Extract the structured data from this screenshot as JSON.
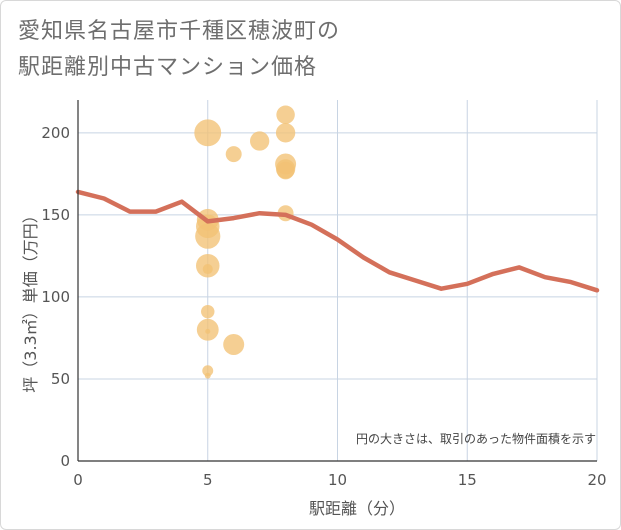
{
  "title_line1": "愛知県名古屋市千種区穂波町の",
  "title_line2": "駅距離別中古マンション価格",
  "colors": {
    "bubble": "#f2c174",
    "line": "#d4705a",
    "grid": "#c8d4e3",
    "axis": "#333333"
  },
  "chart_data": {
    "type": "scatter",
    "xlabel": "駅距離（分）",
    "ylabel": "坪（3.3㎡）単価（万円）",
    "xlim": [
      0,
      20
    ],
    "ylim": [
      0,
      220
    ],
    "x_ticks": [
      "0",
      "5",
      "10",
      "15",
      "20"
    ],
    "y_ticks": [
      "0",
      "50",
      "100",
      "150",
      "200"
    ],
    "note": "円の大きさは、取引のあった物件面積を示す",
    "bubbles": [
      {
        "x": 5,
        "y": 200,
        "size": 3.2
      },
      {
        "x": 5,
        "y": 147,
        "size": 2.6
      },
      {
        "x": 5,
        "y": 143,
        "size": 2.8
      },
      {
        "x": 5,
        "y": 137,
        "size": 3.0
      },
      {
        "x": 5,
        "y": 119,
        "size": 2.8
      },
      {
        "x": 5,
        "y": 117,
        "size": 1.2
      },
      {
        "x": 5,
        "y": 91,
        "size": 1.6
      },
      {
        "x": 5,
        "y": 80,
        "size": 2.6
      },
      {
        "x": 5,
        "y": 79,
        "size": 0.6
      },
      {
        "x": 5,
        "y": 55,
        "size": 1.3
      },
      {
        "x": 5,
        "y": 52,
        "size": 0.7
      },
      {
        "x": 6,
        "y": 187,
        "size": 1.9
      },
      {
        "x": 6,
        "y": 71,
        "size": 2.5
      },
      {
        "x": 7,
        "y": 195,
        "size": 2.3
      },
      {
        "x": 8,
        "y": 211,
        "size": 2.2
      },
      {
        "x": 8,
        "y": 200,
        "size": 2.3
      },
      {
        "x": 8,
        "y": 181,
        "size": 2.5
      },
      {
        "x": 8,
        "y": 178,
        "size": 2.3
      },
      {
        "x": 8,
        "y": 177,
        "size": 2.1
      },
      {
        "x": 8,
        "y": 151,
        "size": 1.9
      }
    ],
    "series": [
      {
        "x": [
          0,
          1,
          2,
          3,
          4,
          5,
          6,
          7,
          8,
          9,
          10,
          11,
          12,
          13,
          14,
          15,
          16,
          17,
          18,
          19,
          20
        ],
        "values": [
          164,
          160,
          152,
          152,
          158,
          146,
          148,
          151,
          150,
          144,
          135,
          124,
          115,
          110,
          105,
          108,
          114,
          118,
          112,
          109,
          104
        ]
      }
    ]
  }
}
